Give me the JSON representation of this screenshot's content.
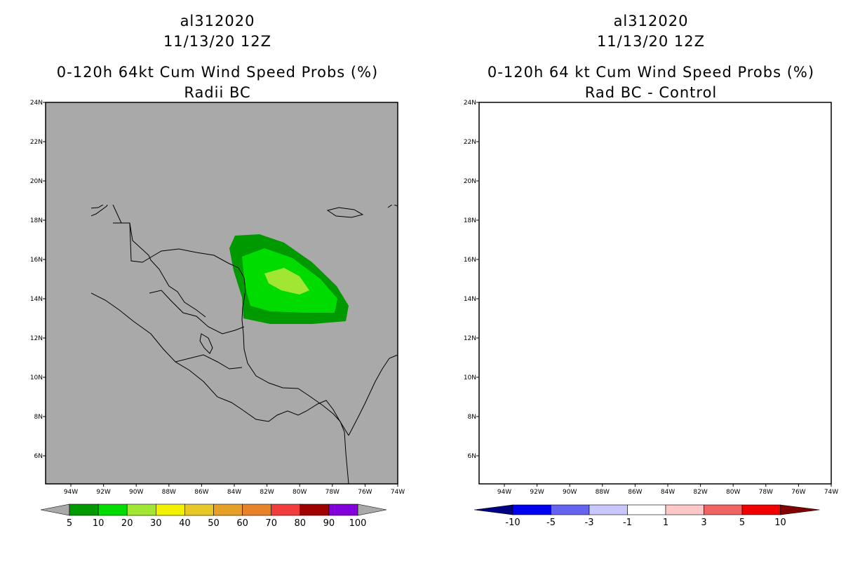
{
  "left_panel": {
    "storm_id": "al312020",
    "datetime": "11/13/20 12Z",
    "product": "0-120h 64kt Cum Wind Speed Probs (%)",
    "subtitle": "Radii BC",
    "lat_labels": [
      "24N",
      "22N",
      "20N",
      "18N",
      "16N",
      "14N",
      "12N",
      "10N",
      "8N",
      "6N"
    ],
    "lon_labels": [
      "94W",
      "92W",
      "90W",
      "88W",
      "86W",
      "84W",
      "82W",
      "80W",
      "78W",
      "76W",
      "74W"
    ],
    "colorbar": {
      "labels": [
        "5",
        "10",
        "20",
        "30",
        "40",
        "50",
        "60",
        "70",
        "80",
        "90",
        "100"
      ],
      "colors": [
        "#009900",
        "#00dc00",
        "#a0e632",
        "#f0f000",
        "#e6c828",
        "#e6a028",
        "#e68228",
        "#f03c3c",
        "#a00000",
        "#8200dc"
      ],
      "background_color": "#a9a9a9"
    }
  },
  "right_panel": {
    "storm_id": "al312020",
    "datetime": "11/13/20 12Z",
    "product": "0-120h 64 kt Cum Wind Speed Probs (%)",
    "subtitle": "Rad BC - Control",
    "lat_labels": [
      "24N",
      "22N",
      "20N",
      "18N",
      "16N",
      "14N",
      "12N",
      "10N",
      "8N",
      "6N"
    ],
    "lon_labels": [
      "94W",
      "92W",
      "90W",
      "88W",
      "86W",
      "84W",
      "82W",
      "80W",
      "78W",
      "76W",
      "74W"
    ],
    "colorbar": {
      "labels": [
        "-10",
        "-5",
        "-3",
        "-1",
        "1",
        "3",
        "5",
        "10"
      ],
      "colors": [
        "#000082",
        "#0000f0",
        "#6464f0",
        "#c8c8ff",
        "#ffffff",
        "#ffc8c8",
        "#f06464",
        "#f00000",
        "#820000"
      ]
    }
  }
}
